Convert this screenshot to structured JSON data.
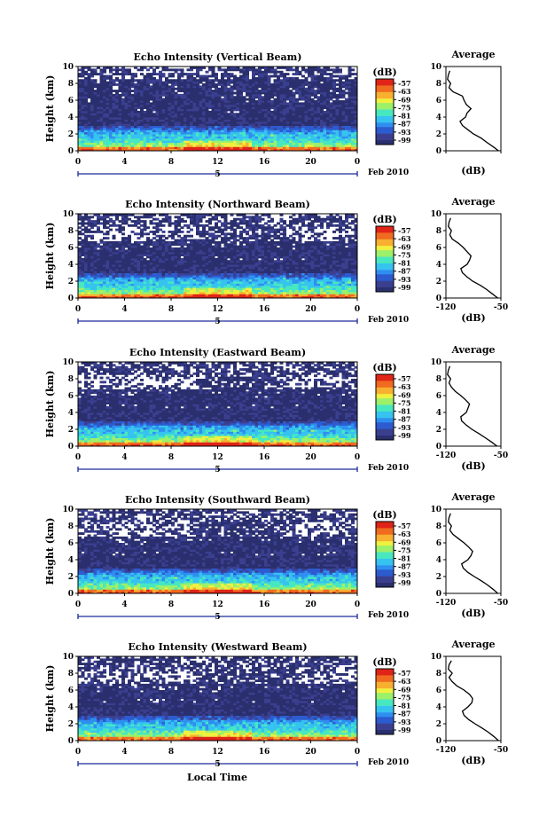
{
  "figure": {
    "xlabel": "Local Time",
    "date_label": "Feb 2010",
    "day_marker": "5",
    "colorbar_unit": "(dB)",
    "colorbar_ticks": [
      "-57",
      "-63",
      "-69",
      "-75",
      "-81",
      "-87",
      "-93",
      "-99"
    ],
    "colormap": [
      "#2a2f6e",
      "#3b3f8f",
      "#2d5bd0",
      "#2f8ff0",
      "#36c3f0",
      "#47e8c0",
      "#9cf06a",
      "#f0f040",
      "#f8b030",
      "#f06a20",
      "#e02418"
    ]
  },
  "chart_data": [
    {
      "type": "heatmap",
      "title": "Echo Intensity (Vertical Beam)",
      "xlabel": "",
      "ylabel": "Height (km)",
      "xlim": [
        0,
        24
      ],
      "ylim": [
        0,
        10
      ],
      "xticks": [
        "0",
        "4",
        "8",
        "12",
        "16",
        "20",
        "0"
      ],
      "yticks": [
        "0",
        "2",
        "4",
        "6",
        "8",
        "10"
      ],
      "colorbar": {
        "label": "(dB)",
        "range": [
          -99,
          -57
        ]
      },
      "average": {
        "title": "Average",
        "xlabel": "(dB)",
        "xlim": [
          -120,
          -50
        ],
        "xticks": [
          "",
          ""
        ],
        "height": [
          0,
          0.5,
          1,
          1.5,
          2,
          2.5,
          3,
          3.5,
          4,
          4.5,
          5,
          5.5,
          6,
          6.5,
          7,
          7.5,
          8,
          8.5,
          9,
          9.5
        ],
        "db": [
          -53,
          -60,
          -68,
          -75,
          -85,
          -92,
          -99,
          -102,
          -95,
          -93,
          -88,
          -94,
          -97,
          -99,
          -111,
          -116,
          -114,
          -118,
          -117,
          -115
        ]
      }
    },
    {
      "type": "heatmap",
      "title": "Echo Intensity (Northward Beam)",
      "xlabel": "",
      "ylabel": "Height (km)",
      "xlim": [
        0,
        24
      ],
      "ylim": [
        0,
        10
      ],
      "xticks": [
        "0",
        "4",
        "8",
        "12",
        "16",
        "20",
        "0"
      ],
      "yticks": [
        "0",
        "2",
        "4",
        "6",
        "8",
        "10"
      ],
      "colorbar": {
        "label": "(dB)",
        "range": [
          -99,
          -57
        ]
      },
      "average": {
        "title": "Average",
        "xlabel": "(dB)",
        "xlim": [
          -120,
          -50
        ],
        "xticks": [
          "-120",
          "-50"
        ],
        "height": [
          0,
          0.5,
          1,
          1.5,
          2,
          2.5,
          3,
          3.5,
          4,
          4.5,
          5,
          5.5,
          6,
          6.5,
          7,
          7.5,
          8,
          8.5,
          9,
          9.5
        ],
        "db": [
          -54,
          -61,
          -68,
          -76,
          -86,
          -93,
          -99,
          -101,
          -93,
          -90,
          -88,
          -93,
          -98,
          -104,
          -112,
          -115,
          -113,
          -117,
          -116,
          -114
        ]
      }
    },
    {
      "type": "heatmap",
      "title": "Echo Intensity (Eastward Beam)",
      "xlabel": "",
      "ylabel": "Height (km)",
      "xlim": [
        0,
        24
      ],
      "ylim": [
        0,
        10
      ],
      "xticks": [
        "0",
        "4",
        "8",
        "12",
        "16",
        "20",
        "0"
      ],
      "yticks": [
        "0",
        "2",
        "4",
        "6",
        "8",
        "10"
      ],
      "colorbar": {
        "label": "(dB)",
        "range": [
          -99,
          -57
        ]
      },
      "average": {
        "title": "Average",
        "xlabel": "(dB)",
        "xlim": [
          -120,
          -50
        ],
        "xticks": [
          "-120",
          "-50"
        ],
        "height": [
          0,
          0.5,
          1,
          1.5,
          2,
          2.5,
          3,
          3.5,
          4,
          4.5,
          5,
          5.5,
          6,
          6.5,
          7,
          7.5,
          8,
          8.5,
          9,
          9.5
        ],
        "db": [
          -55,
          -62,
          -70,
          -78,
          -87,
          -94,
          -100,
          -101,
          -94,
          -92,
          -90,
          -95,
          -101,
          -108,
          -113,
          -116,
          -114,
          -118,
          -117,
          -115
        ]
      }
    },
    {
      "type": "heatmap",
      "title": "Echo Intensity (Southward Beam)",
      "xlabel": "",
      "ylabel": "Height (km)",
      "xlim": [
        0,
        24
      ],
      "ylim": [
        0,
        10
      ],
      "xticks": [
        "0",
        "4",
        "8",
        "12",
        "16",
        "20",
        "0"
      ],
      "yticks": [
        "0",
        "2",
        "4",
        "6",
        "8",
        "10"
      ],
      "colorbar": {
        "label": "(dB)",
        "range": [
          -99,
          -57
        ]
      },
      "average": {
        "title": "Average",
        "xlabel": "(dB)",
        "xlim": [
          -120,
          -50
        ],
        "xticks": [
          "-120",
          "-50"
        ],
        "height": [
          0,
          0.5,
          1,
          1.5,
          2,
          2.5,
          3,
          3.5,
          4,
          4.5,
          5,
          5.5,
          6,
          6.5,
          7,
          7.5,
          8,
          8.5,
          9,
          9.5
        ],
        "db": [
          -54,
          -60,
          -67,
          -75,
          -84,
          -92,
          -98,
          -100,
          -92,
          -88,
          -86,
          -91,
          -97,
          -104,
          -111,
          -115,
          -113,
          -117,
          -116,
          -114
        ]
      }
    },
    {
      "type": "heatmap",
      "title": "Echo Intensity (Westward Beam)",
      "xlabel": "Local Time",
      "ylabel": "Height (km)",
      "xlim": [
        0,
        24
      ],
      "ylim": [
        0,
        10
      ],
      "xticks": [
        "0",
        "4",
        "8",
        "12",
        "16",
        "20",
        "0"
      ],
      "yticks": [
        "0",
        "2",
        "4",
        "6",
        "8",
        "10"
      ],
      "colorbar": {
        "label": "(dB)",
        "range": [
          -99,
          -57
        ]
      },
      "average": {
        "title": "Average",
        "xlabel": "(dB)",
        "xlim": [
          -120,
          -50
        ],
        "xticks": [
          "-120",
          "-50"
        ],
        "height": [
          0,
          0.5,
          1,
          1.5,
          2,
          2.5,
          3,
          3.5,
          4,
          4.5,
          5,
          5.5,
          6,
          6.5,
          7,
          7.5,
          8,
          8.5,
          9,
          9.5
        ],
        "db": [
          -53,
          -59,
          -66,
          -74,
          -83,
          -91,
          -97,
          -99,
          -92,
          -87,
          -86,
          -90,
          -97,
          -106,
          -112,
          -116,
          -112,
          -117,
          -116,
          -113
        ]
      }
    }
  ]
}
